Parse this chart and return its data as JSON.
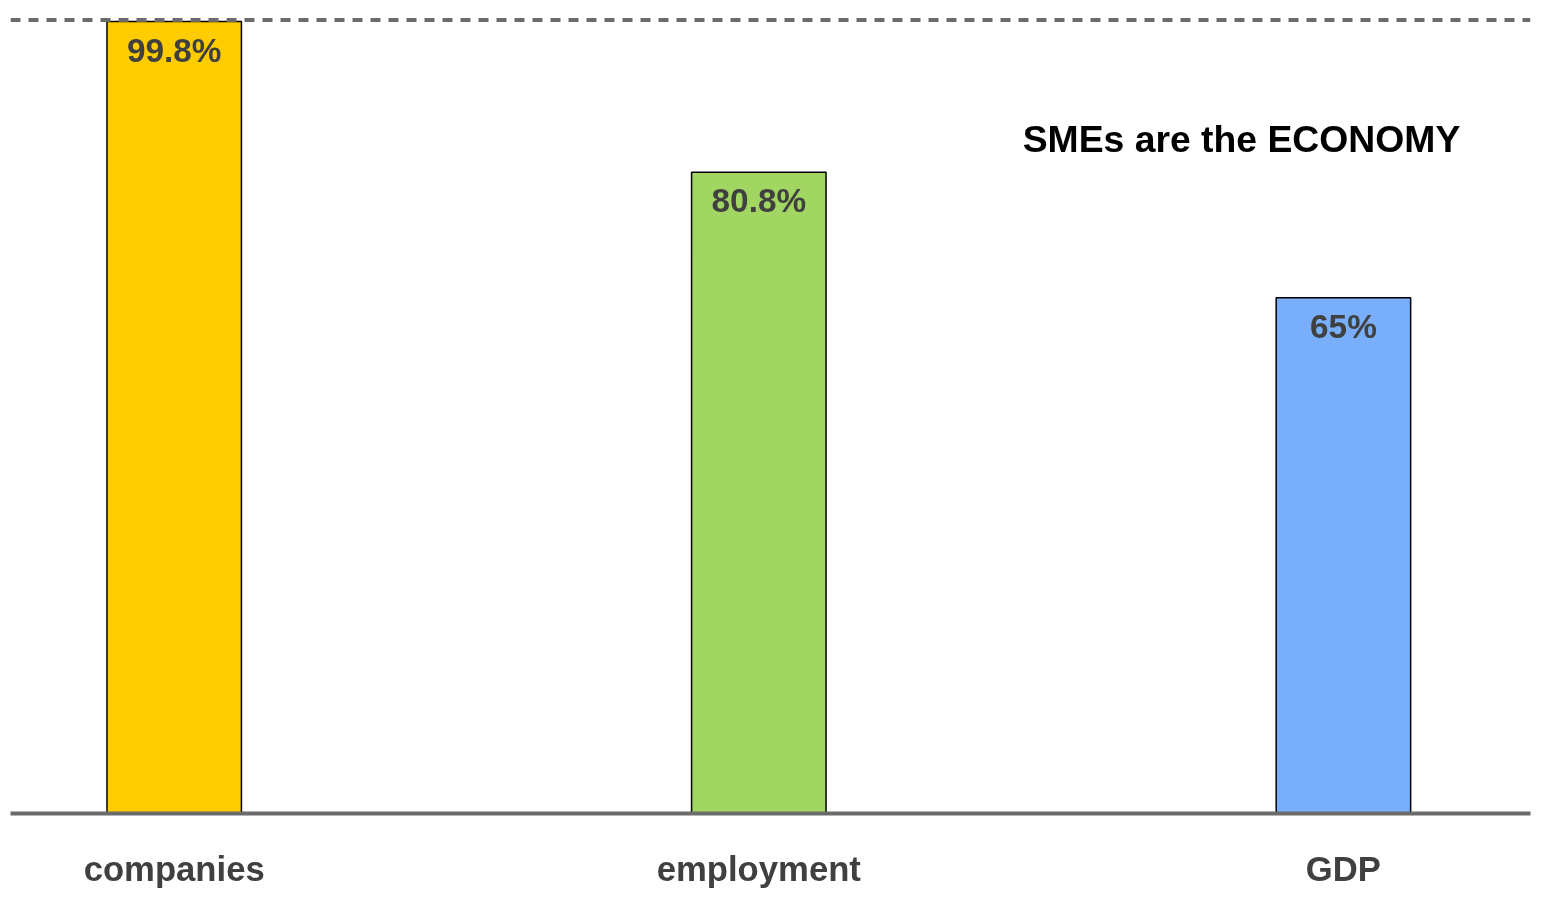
{
  "chart_data": {
    "type": "bar",
    "title": "SMEs are the ECONOMY",
    "categories": [
      "companies",
      "employment",
      "GDP"
    ],
    "values": [
      99.8,
      80.8,
      65
    ],
    "colors": [
      "#ffcc00",
      "#a2d662",
      "#78aefa"
    ],
    "value_labels": [
      "99.8%",
      "80.8%",
      "65%"
    ],
    "ref_lines": [
      {
        "axis": "y",
        "value": 100,
        "label": null,
        "color": "#6b6b6b",
        "line_style": "dashed"
      }
    ],
    "grid": false,
    "tick_labels": "x"
  }
}
